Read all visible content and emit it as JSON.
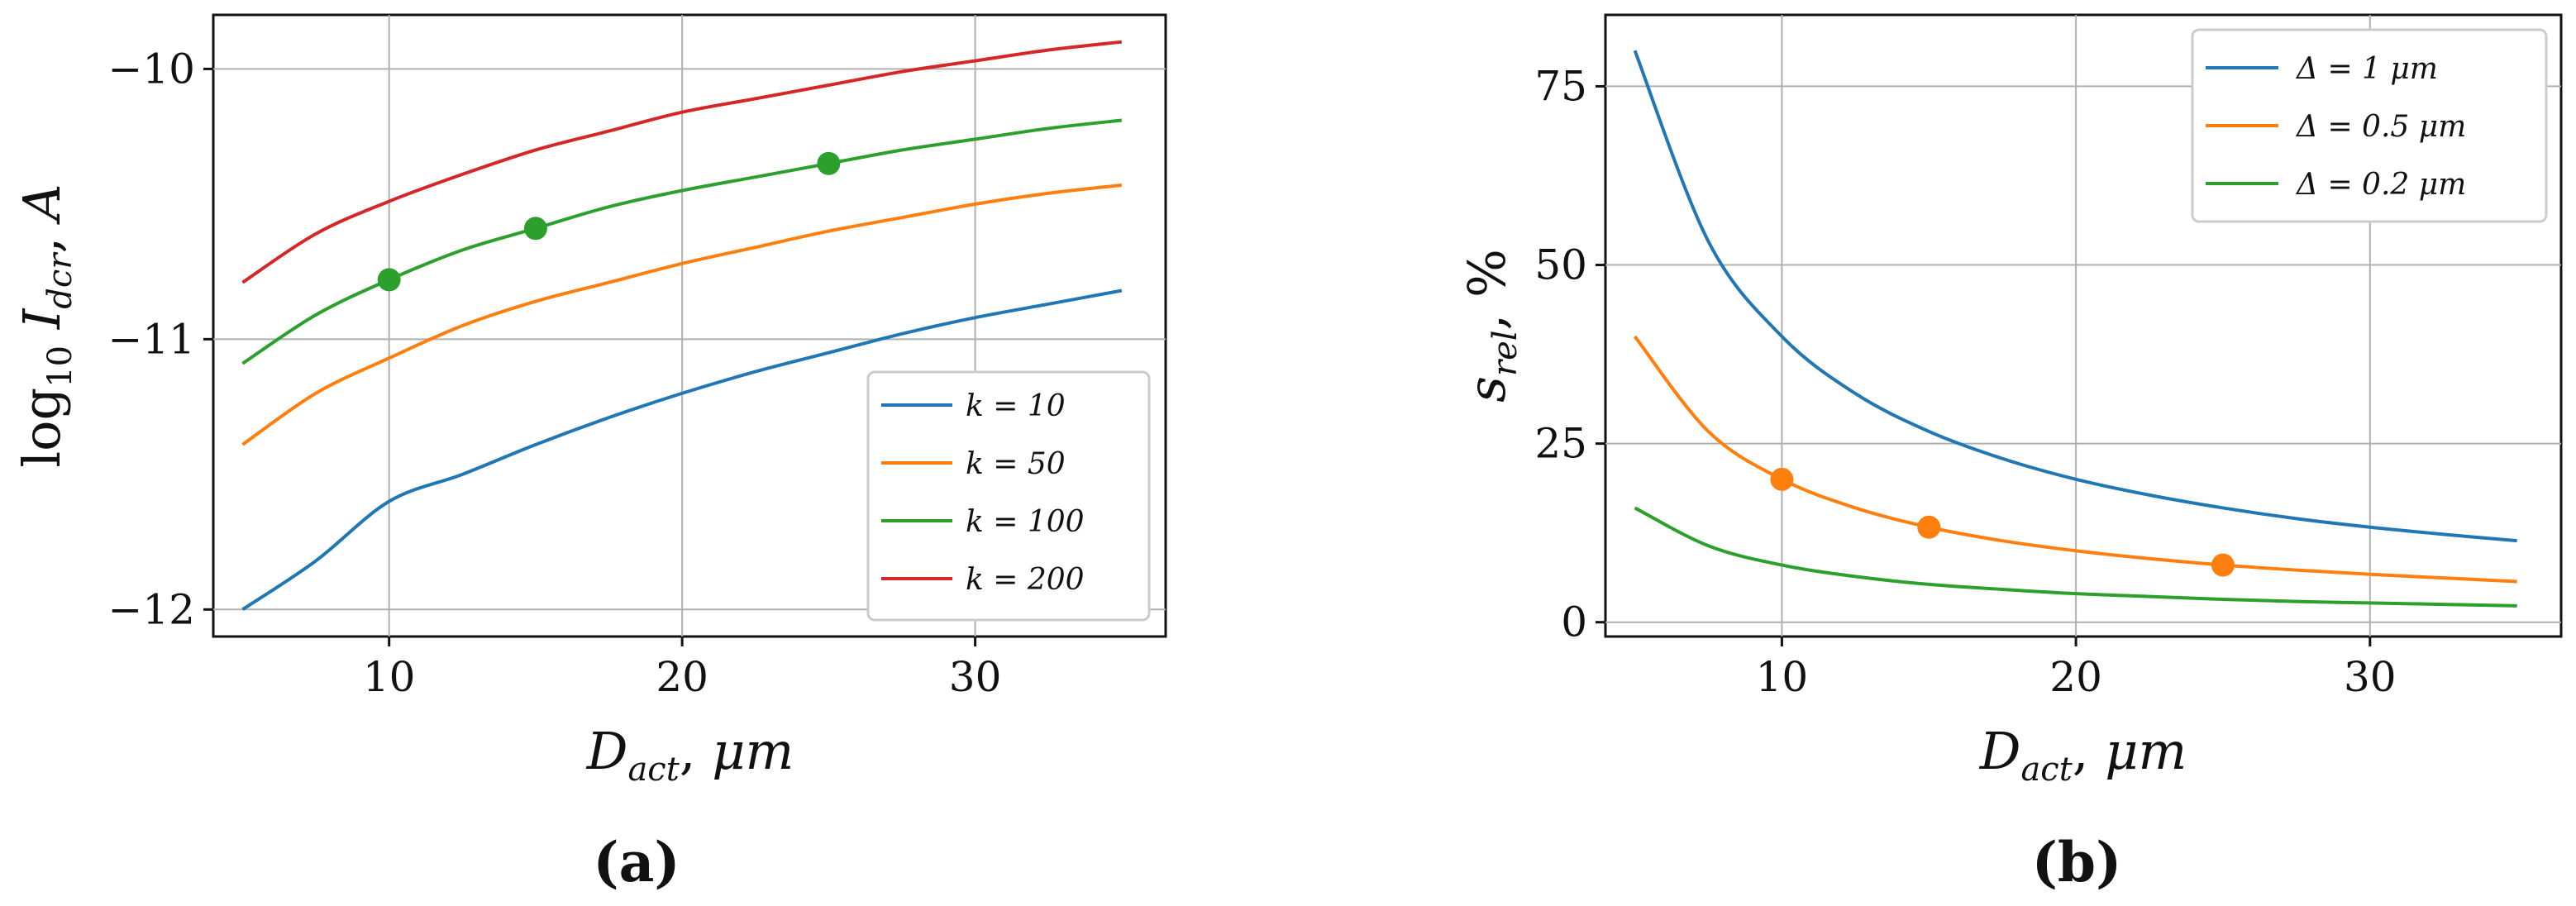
{
  "chart_data": [
    {
      "id": "a",
      "type": "line",
      "panel_label": "(a)",
      "xlabel": "D_act,  μm",
      "ylabel": "log10 I_dcr,  A",
      "xlim": [
        4,
        36.5
      ],
      "ylim": [
        -12.1,
        -9.8
      ],
      "xticks": [
        10,
        20,
        30
      ],
      "yticks": [
        -12,
        -11,
        -10
      ],
      "ytick_labels": [
        "−12",
        "−11",
        "−10"
      ],
      "xtick_labels": [
        "10",
        "20",
        "30"
      ],
      "grid": true,
      "legend_position": "lower-right",
      "series": [
        {
          "name": "k = 10",
          "color": "#1f77b4",
          "x": [
            5,
            7.5,
            10,
            12.5,
            15,
            17.5,
            20,
            22.5,
            25,
            27.5,
            30,
            32.5,
            35
          ],
          "y": [
            -12.0,
            -11.82,
            -11.6,
            -11.5,
            -11.39,
            -11.29,
            -11.2,
            -11.12,
            -11.05,
            -10.98,
            -10.92,
            -10.87,
            -10.82
          ]
        },
        {
          "name": "k = 50",
          "color": "#ff7f0e",
          "x": [
            5,
            7.5,
            10,
            12.5,
            15,
            17.5,
            20,
            22.5,
            25,
            27.5,
            30,
            32.5,
            35
          ],
          "y": [
            -11.39,
            -11.2,
            -11.07,
            -10.95,
            -10.86,
            -10.79,
            -10.72,
            -10.66,
            -10.6,
            -10.55,
            -10.5,
            -10.46,
            -10.43
          ]
        },
        {
          "name": "k = 100",
          "color": "#2ca02c",
          "x": [
            5,
            7.5,
            10,
            12.5,
            15,
            17.5,
            20,
            22.5,
            25,
            27.5,
            30,
            32.5,
            35
          ],
          "y": [
            -11.09,
            -10.91,
            -10.78,
            -10.67,
            -10.59,
            -10.51,
            -10.45,
            -10.4,
            -10.35,
            -10.3,
            -10.26,
            -10.22,
            -10.19
          ]
        },
        {
          "name": "k = 200",
          "color": "#d62728",
          "x": [
            5,
            7.5,
            10,
            12.5,
            15,
            17.5,
            20,
            22.5,
            25,
            27.5,
            30,
            32.5,
            35
          ],
          "y": [
            -10.79,
            -10.61,
            -10.49,
            -10.39,
            -10.3,
            -10.23,
            -10.16,
            -10.11,
            -10.06,
            -10.01,
            -9.97,
            -9.93,
            -9.9
          ]
        }
      ],
      "markers": {
        "color": "#2ca02c",
        "x": [
          10,
          15,
          25
        ],
        "y": [
          -10.78,
          -10.59,
          -10.35
        ]
      }
    },
    {
      "id": "b",
      "type": "line",
      "panel_label": "(b)",
      "xlabel": "D_act,  μm",
      "ylabel": "s_rel,  %",
      "xlim": [
        4,
        36.5
      ],
      "ylim": [
        -2,
        85
      ],
      "xticks": [
        10,
        20,
        30
      ],
      "yticks": [
        0,
        25,
        50,
        75
      ],
      "xtick_labels": [
        "10",
        "20",
        "30"
      ],
      "ytick_labels": [
        "0",
        "25",
        "50",
        "75"
      ],
      "grid": true,
      "legend_position": "top-right",
      "series": [
        {
          "name": "Δ = 1 μm",
          "color": "#1f77b4",
          "x": [
            5,
            7.5,
            10,
            12.5,
            15,
            17.5,
            20,
            22.5,
            25,
            27.5,
            30,
            32.5,
            35
          ],
          "y": [
            80,
            53.3,
            40,
            32,
            26.7,
            22.9,
            20,
            17.8,
            16,
            14.5,
            13.3,
            12.3,
            11.4
          ]
        },
        {
          "name": "Δ = 0.5 μm",
          "color": "#ff7f0e",
          "x": [
            5,
            7.5,
            10,
            12.5,
            15,
            17.5,
            20,
            22.5,
            25,
            27.5,
            30,
            32.5,
            35
          ],
          "y": [
            40,
            26.7,
            20,
            16,
            13.3,
            11.4,
            10,
            8.9,
            8,
            7.3,
            6.7,
            6.2,
            5.7
          ]
        },
        {
          "name": "Δ = 0.2 μm",
          "color": "#2ca02c",
          "x": [
            5,
            7.5,
            10,
            12.5,
            15,
            17.5,
            20,
            22.5,
            25,
            27.5,
            30,
            32.5,
            35
          ],
          "y": [
            16,
            10.7,
            8,
            6.4,
            5.3,
            4.6,
            4,
            3.6,
            3.2,
            2.9,
            2.7,
            2.5,
            2.3
          ]
        }
      ],
      "markers": {
        "color": "#ff7f0e",
        "x": [
          10,
          15,
          25
        ],
        "y": [
          20,
          13.3,
          8
        ]
      }
    }
  ]
}
